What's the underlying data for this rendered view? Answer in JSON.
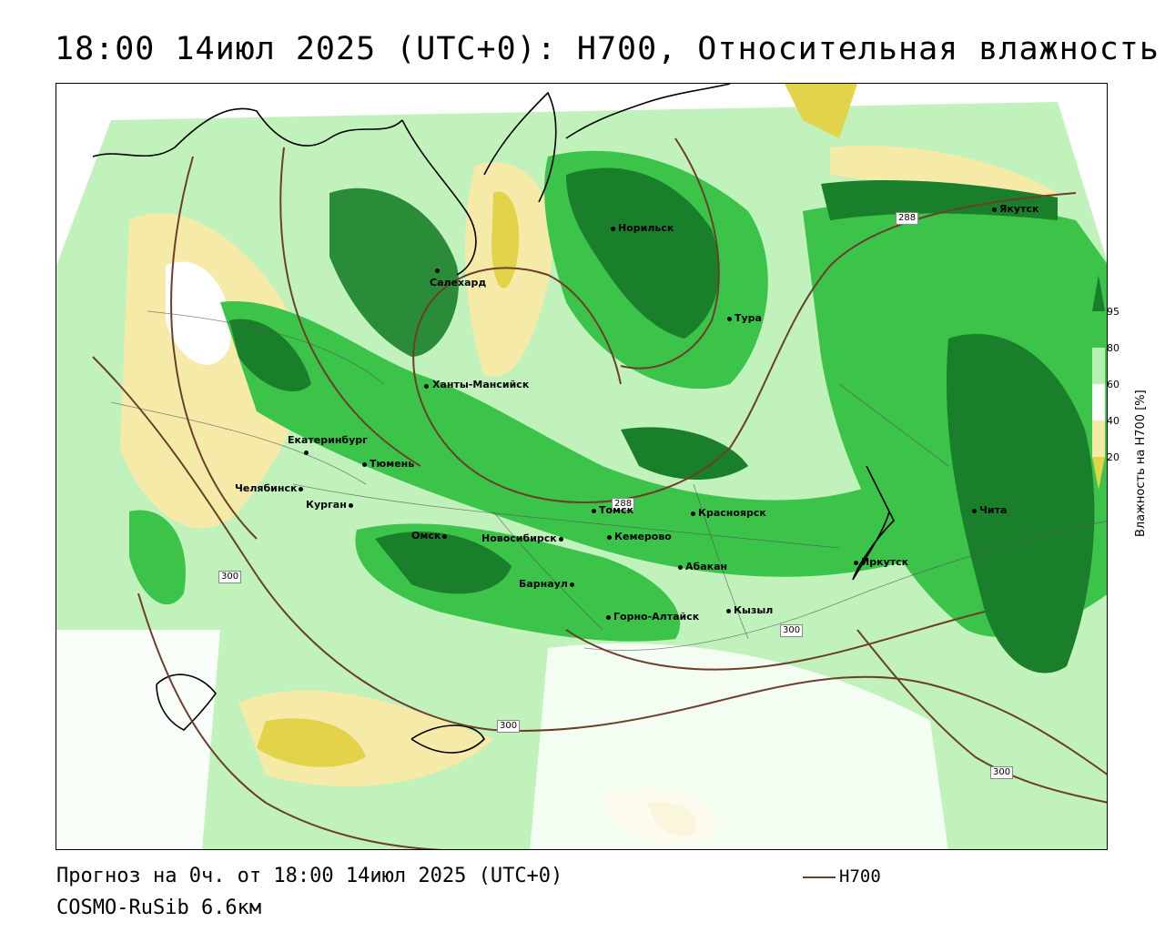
{
  "title": "18:00 14июл 2025 (UTC+0): H700, Относительная влажность",
  "footer": {
    "line1": "Прогноз на 0ч. от 18:00 14июл 2025 (UTC+0)",
    "line2": "COSMO-RuSib 6.6км",
    "contour_legend": "H700"
  },
  "colorbar": {
    "title": "Влажность на H700 [%]",
    "ticks": [
      "95",
      "80",
      "60",
      "40",
      "20"
    ],
    "colors": {
      "95": "#1a7f2a",
      "80": "#3cc34a",
      "60": "#b6f0b0",
      "40": "#ffffff",
      "20": "#f6eaa8",
      "below": "#e3d34a"
    }
  },
  "contour_labels": [
    "288",
    "288",
    "300",
    "300",
    "300",
    "300"
  ],
  "cities": [
    {
      "name": "Якутск"
    },
    {
      "name": "Норильск"
    },
    {
      "name": "Тура"
    },
    {
      "name": "Салехард"
    },
    {
      "name": "Ханты-Мансийск"
    },
    {
      "name": "Екатеринбург"
    },
    {
      "name": "Тюмень"
    },
    {
      "name": "Челябинск"
    },
    {
      "name": "Курган"
    },
    {
      "name": "Омск"
    },
    {
      "name": "Новосибирск"
    },
    {
      "name": "Томск"
    },
    {
      "name": "Кемерово"
    },
    {
      "name": "Красноярск"
    },
    {
      "name": "Барнаул"
    },
    {
      "name": "Абакан"
    },
    {
      "name": "Горно-Алтайск"
    },
    {
      "name": "Кызыл"
    },
    {
      "name": "Иркутск"
    },
    {
      "name": "Чита"
    }
  ]
}
